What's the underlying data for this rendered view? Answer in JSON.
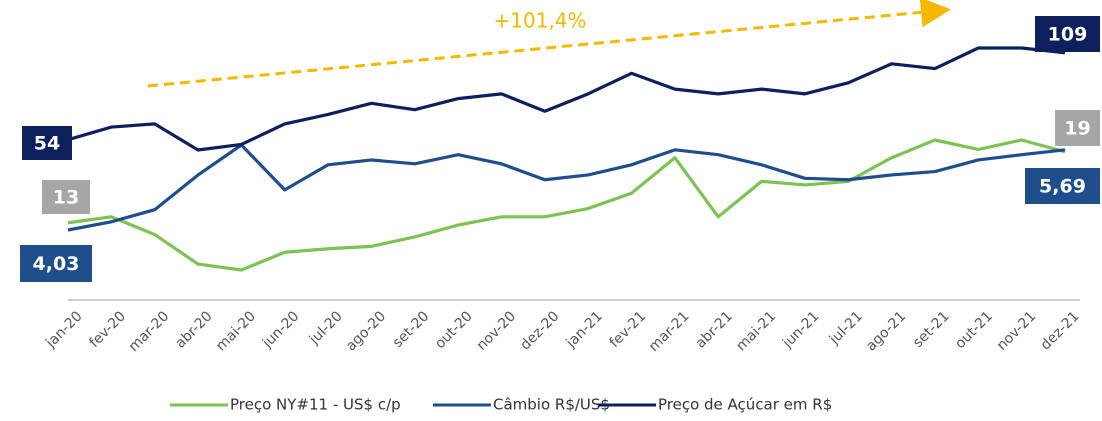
{
  "chart_data": {
    "type": "line",
    "annotation": "+101,4%",
    "categories": [
      "jan-20",
      "fev-20",
      "mar-20",
      "abr-20",
      "mai-20",
      "jun-20",
      "jul-20",
      "ago-20",
      "set-20",
      "out-20",
      "nov-20",
      "dez-20",
      "jan-21",
      "fev-21",
      "mar-21",
      "abr-21",
      "mai-21",
      "jun-21",
      "jul-21",
      "ago-21",
      "set-21",
      "out-21",
      "nov-21",
      "dez-21"
    ],
    "series": [
      {
        "name": "Preço NY#11 - US$ c/p",
        "color": "#7dc353",
        "label_color": "#a6a6a6",
        "values": [
          13,
          13.5,
          12,
          9.5,
          9,
          10.5,
          10.8,
          11,
          11.8,
          12.8,
          13.5,
          13.5,
          14.2,
          15.5,
          18.5,
          13.5,
          16.5,
          16.2,
          16.5,
          18.5,
          20,
          19.2,
          20,
          19
        ],
        "value_labels": [
          "13",
          null,
          null,
          null,
          null,
          null,
          null,
          null,
          null,
          null,
          null,
          null,
          null,
          null,
          null,
          null,
          null,
          null,
          null,
          null,
          null,
          null,
          null,
          "19"
        ]
      },
      {
        "name": "Câmbio R$/US$",
        "color": "#1f4e8c",
        "label_color": "#1f4e8c",
        "values": [
          4.03,
          4.2,
          4.45,
          5.17,
          5.79,
          4.86,
          5.38,
          5.48,
          5.4,
          5.59,
          5.4,
          5.07,
          5.17,
          5.38,
          5.69,
          5.59,
          5.38,
          5.1,
          5.07,
          5.17,
          5.24,
          5.48,
          5.59,
          5.69
        ],
        "value_labels": [
          "4,03",
          null,
          null,
          null,
          null,
          null,
          null,
          null,
          null,
          null,
          null,
          null,
          null,
          null,
          null,
          null,
          null,
          null,
          null,
          null,
          null,
          null,
          null,
          "5,69"
        ]
      },
      {
        "name": "Preço de Açúcar em R$",
        "color": "#0d1f5c",
        "label_color": "#0d1f5c",
        "values": [
          54,
          62,
          64,
          47.5,
          51,
          64,
          70,
          77,
          73,
          80,
          83,
          72,
          83,
          96,
          86,
          83,
          86,
          83,
          90,
          102,
          99,
          112,
          112,
          109
        ],
        "value_labels": [
          "54",
          null,
          null,
          null,
          null,
          null,
          null,
          null,
          null,
          null,
          null,
          null,
          null,
          null,
          null,
          null,
          null,
          null,
          null,
          null,
          null,
          null,
          null,
          "109"
        ]
      }
    ]
  }
}
